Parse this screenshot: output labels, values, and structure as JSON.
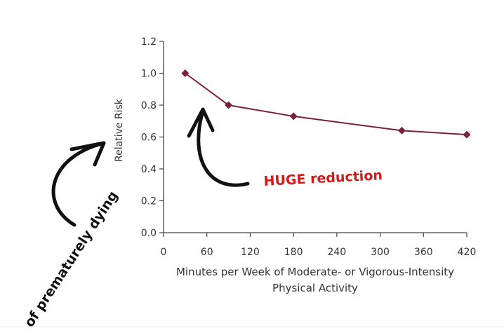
{
  "chart_data": {
    "type": "line",
    "x": [
      30,
      90,
      180,
      330,
      420
    ],
    "values": [
      1.0,
      0.8,
      0.73,
      0.64,
      0.615
    ],
    "xlabel_line1": "Minutes per Week of Moderate- or Vigorous-Intensity",
    "xlabel_line2": "Physical Activity",
    "ylabel": "Relative Risk",
    "xlim": [
      0,
      420
    ],
    "ylim": [
      0.0,
      1.2
    ],
    "xticks": [
      "0",
      "60",
      "120",
      "180",
      "240",
      "300",
      "360",
      "420"
    ],
    "yticks": [
      "0.0",
      "0.2",
      "0.4",
      "0.6",
      "0.8",
      "1.0",
      "1.2"
    ],
    "grid": false,
    "line_color": "#7b2336",
    "annotations": {
      "huge": "HUGE reduction",
      "huge_color": "#d11a1a",
      "dying": "of prematurely dying"
    }
  }
}
